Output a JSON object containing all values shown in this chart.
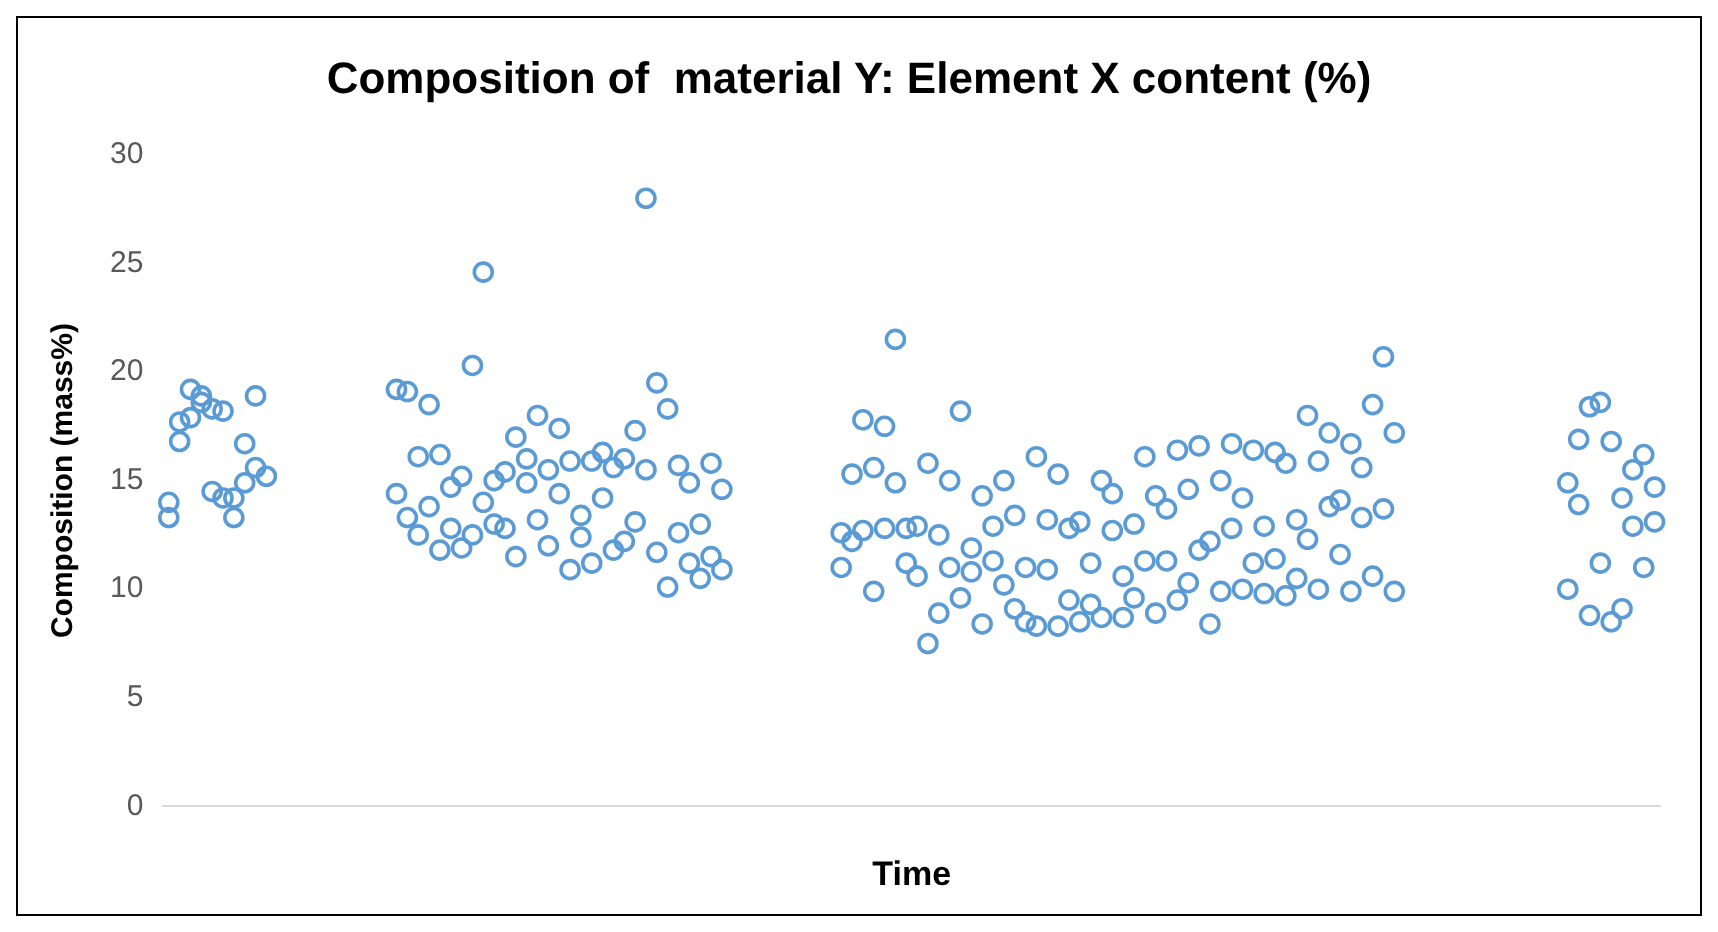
{
  "chart_data": {
    "type": "scatter",
    "title": "Composition of  material Y: Element X content (%)",
    "xlabel": "Time",
    "ylabel": "Composition (mass%)",
    "categories": [
      null,
      null,
      null,
      null,
      null,
      null,
      null,
      null,
      null,
      null,
      null,
      null,
      null,
      null,
      null,
      null,
      null,
      null,
      null,
      null,
      null,
      null,
      null,
      null,
      null,
      null,
      null,
      null,
      null,
      null,
      null,
      null,
      null,
      null,
      null,
      null,
      null,
      null,
      null,
      null,
      null,
      null,
      null,
      null,
      null,
      null,
      null,
      null,
      null,
      null,
      null,
      null,
      null,
      null,
      null,
      null,
      null,
      null,
      null,
      null,
      null,
      null,
      null,
      null,
      null,
      null,
      null,
      null,
      null,
      null,
      null,
      null,
      null,
      null,
      null,
      null,
      null,
      null,
      null,
      null,
      null,
      null,
      null,
      null,
      null,
      null,
      null,
      null,
      null,
      null,
      null,
      null,
      null,
      null,
      null,
      null,
      null,
      null,
      null,
      null,
      null,
      null,
      null,
      null,
      null,
      null,
      null,
      null,
      null,
      null,
      null,
      null,
      null,
      null,
      null,
      null,
      null,
      null,
      null,
      null,
      null,
      null,
      null,
      null,
      null,
      null,
      null,
      null,
      null,
      null,
      null,
      null,
      null,
      null,
      null,
      null,
      null,
      null
    ],
    "series": [
      {
        "color": "#5b9bd5",
        "values": [
          14.0,
          16.8,
          19.2,
          18.6,
          18.3,
          14.2,
          13.3,
          16.7,
          18.9,
          15.2,
          null,
          null,
          null,
          null,
          null,
          null,
          null,
          null,
          null,
          null,
          null,
          14.4,
          13.3,
          12.5,
          18.5,
          16.2,
          14.7,
          15.2,
          20.3,
          24.6,
          15.0,
          12.8,
          17.0,
          16.0,
          18.0,
          15.5,
          14.4,
          15.9,
          13.4,
          15.9,
          16.3,
          15.6,
          16.0,
          17.3,
          28.0,
          19.5,
          18.3,
          15.7,
          14.9,
          13.0,
          15.8,
          14.6,
          null,
          null,
          null,
          null,
          null,
          null,
          null,
          null,
          null,
          null,
          11.0,
          15.3,
          17.8,
          15.6,
          17.5,
          21.5,
          11.2,
          12.9,
          7.5,
          8.9,
          15.0,
          18.2,
          11.9,
          8.4,
          12.9,
          15.0,
          13.4,
          11.0,
          16.1,
          13.2,
          15.3,
          12.8,
          8.5,
          9.3,
          15.0,
          14.4,
          8.7,
          13.0,
          16.1,
          14.3,
          11.3,
          16.4,
          14.6,
          16.6,
          12.2,
          15.0,
          16.7,
          14.2,
          16.4,
          12.9,
          16.3,
          15.8,
          13.2,
          18.0,
          15.9,
          17.2,
          14.1,
          16.7,
          15.6,
          18.5,
          20.7,
          17.2,
          null,
          null,
          null,
          null,
          null,
          null,
          null,
          null,
          null,
          null,
          null,
          null,
          null,
          null,
          null,
          14.9,
          13.9,
          18.4,
          18.6,
          16.8,
          14.2,
          12.9,
          16.2,
          14.7
        ]
      },
      {
        "color": "#5b9bd5",
        "values": [
          13.3,
          17.7,
          17.9,
          18.9,
          14.5,
          18.2,
          14.2,
          14.9,
          15.6,
          null,
          null,
          null,
          null,
          null,
          null,
          null,
          null,
          null,
          null,
          null,
          null,
          19.2,
          19.1,
          16.1,
          13.8,
          11.8,
          12.8,
          11.9,
          12.5,
          14.0,
          13.0,
          15.4,
          11.5,
          14.9,
          13.2,
          12.0,
          17.4,
          10.9,
          12.4,
          11.2,
          14.2,
          11.8,
          12.2,
          13.1,
          15.5,
          11.7,
          10.1,
          12.6,
          11.2,
          10.5,
          11.5,
          10.9,
          null,
          null,
          null,
          null,
          null,
          null,
          null,
          null,
          null,
          null,
          12.6,
          12.2,
          12.7,
          9.9,
          12.8,
          14.9,
          12.8,
          10.6,
          15.8,
          12.5,
          11.0,
          9.6,
          10.8,
          14.3,
          11.3,
          10.2,
          9.1,
          8.5,
          8.3,
          10.9,
          8.3,
          9.5,
          13.1,
          11.2,
          8.7,
          12.7,
          10.6,
          9.6,
          11.3,
          8.9,
          13.7,
          9.5,
          10.3,
          11.8,
          8.4,
          9.9,
          12.8,
          10.0,
          11.2,
          9.8,
          11.4,
          9.7,
          10.5,
          12.3,
          10.0,
          13.8,
          11.6,
          9.9,
          13.3,
          10.6,
          13.7,
          9.9,
          null,
          null,
          null,
          null,
          null,
          null,
          null,
          null,
          null,
          null,
          null,
          null,
          null,
          null,
          null,
          10.0,
          16.9,
          8.8,
          11.2,
          8.5,
          9.1,
          15.5,
          11.0,
          13.1
        ]
      }
    ],
    "ylim": [
      0,
      30
    ],
    "yticks": [
      0,
      5,
      10,
      15,
      20,
      25,
      30
    ],
    "grid": false,
    "legend": false,
    "marker": "circle"
  }
}
